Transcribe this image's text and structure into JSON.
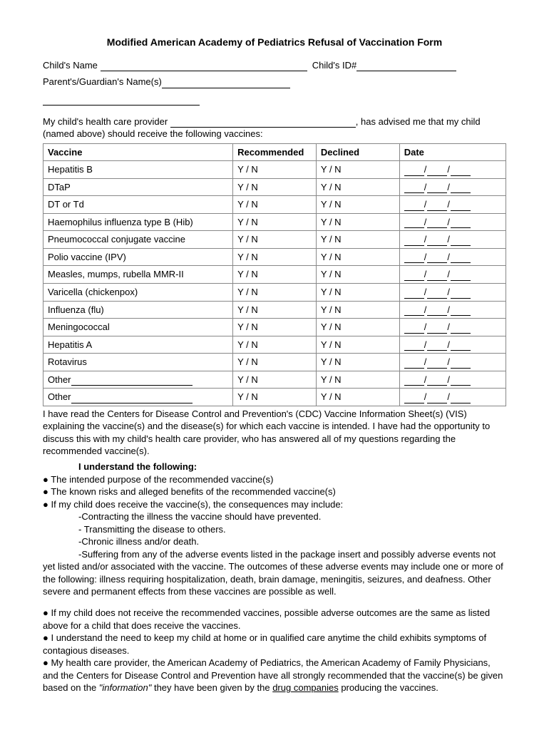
{
  "title": "Modified American Academy of Pediatrics Refusal of Vaccination Form",
  "fields": {
    "child_name_label": "Child's Name",
    "child_id_label": "Child's ID#",
    "guardian_label": "Parent's/Guardian's Name(s)"
  },
  "intro": {
    "part1": "My child's health care provider",
    "part2": ", has advised me that my child (named above) should receive the following vaccines:"
  },
  "table": {
    "headers": {
      "vaccine": "Vaccine",
      "recommended": "Recommended",
      "declined": "Declined",
      "date": "Date"
    },
    "yn": "Y / N",
    "other_label": "Other",
    "rows": [
      "Hepatitis B",
      "DTaP",
      "DT or Td",
      "Haemophilus influenza type B (Hib)",
      "Pneumococcal conjugate vaccine",
      "Polio vaccine (IPV)",
      "Measles, mumps, rubella MMR-II",
      "Varicella (chickenpox)",
      "Influenza (flu)",
      "Meningococcal",
      "Hepatitis A",
      "Rotavirus"
    ]
  },
  "body": {
    "p1": "I have read the Centers for Disease Control and Prevention's (CDC) Vaccine Information Sheet(s) (VIS) explaining the vaccine(s) and the disease(s) for which each vaccine is intended. I have had the opportunity to discuss this with my child's health care provider, who has answered all of my questions regarding the recommended vaccine(s).",
    "understand": "I understand the following:",
    "b1": "● The intended purpose of the recommended vaccine(s)",
    "b2": "● The known risks and alleged benefits of the recommended vaccine(s)",
    "b3": "● If my child does receive the vaccine(s), the consequences may include:",
    "s1": "-Contracting the illness the vaccine should have prevented.",
    "s2": "- Transmitting the disease to others.",
    "s3": "-Chronic illness and/or death.",
    "s4": "-Suffering from any of the adverse events listed in the package insert and possibly adverse events not yet listed and/or associated with the vaccine. The outcomes of these adverse events may include one or more of the following: illness requiring hospitalization, death, brain damage, meningitis, seizures, and deafness. Other severe and permanent effects from these vaccines are possible as well.",
    "b4": "● If my child does not receive the recommended vaccines, possible adverse outcomes are the same as listed above for a child that does receive the vaccines.",
    "b5": "● I understand the need to keep my child at home or in qualified care anytime the child exhibits symptoms of contagious diseases.",
    "b6a": "● My health care provider, the American Academy of Pediatrics, the American Academy of Family Physicians, and the Centers for Disease Control and Prevention have all strongly recommended that the vaccine(s) be given based on the ",
    "b6_italic": "\"information\"",
    "b6b": " they have been given by the ",
    "b6_under": "drug companies",
    "b6c": " producing the vaccines."
  }
}
